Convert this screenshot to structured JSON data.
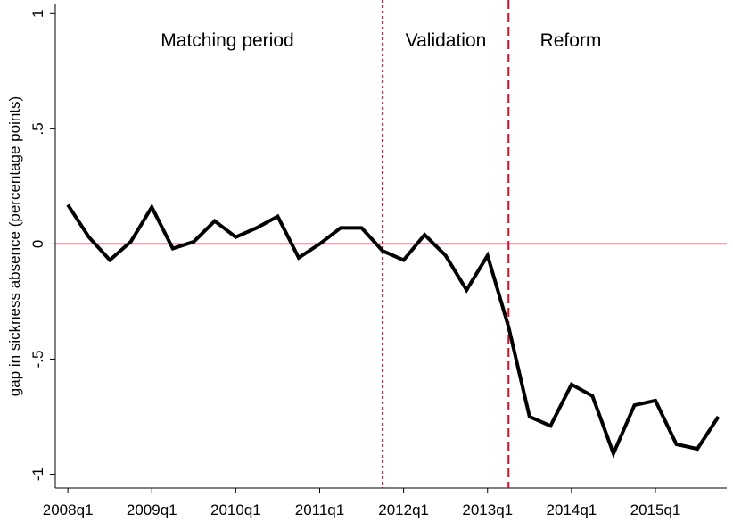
{
  "chart_data": {
    "type": "line",
    "ylabel": "gap in sickness absence (percentage points)",
    "annotations": [
      "Matching period",
      "Validation",
      "Reform"
    ],
    "x": [
      2008,
      2008.25,
      2008.5,
      2008.75,
      2009,
      2009.25,
      2009.5,
      2009.75,
      2010,
      2010.25,
      2010.5,
      2010.75,
      2011,
      2011.25,
      2011.5,
      2011.75,
      2012,
      2012.25,
      2012.5,
      2012.75,
      2013,
      2013.25,
      2013.5,
      2013.75,
      2014,
      2014.25,
      2014.5,
      2014.75,
      2015,
      2015.25,
      2015.5,
      2015.75
    ],
    "series": [
      {
        "color": "#000000",
        "values": [
          0.17,
          0.03,
          -0.07,
          0.01,
          0.16,
          -0.02,
          0.01,
          0.1,
          0.03,
          0.07,
          0.12,
          -0.06,
          0.0,
          0.07,
          0.07,
          -0.03,
          -0.07,
          0.04,
          -0.05,
          -0.2,
          -0.05,
          -0.36,
          -0.75,
          -0.79,
          -0.61,
          -0.66,
          -0.91,
          -0.7,
          -0.68,
          -0.87,
          -0.89,
          -0.75
        ]
      }
    ],
    "xlim": [
      2007.85,
      2015.85
    ],
    "xticks": [
      {
        "value": 2008,
        "label": "2008q1"
      },
      {
        "value": 2009,
        "label": "2009q1"
      },
      {
        "value": 2010,
        "label": "2010q1"
      },
      {
        "value": 2011,
        "label": "2011q1"
      },
      {
        "value": 2012,
        "label": "2012q1"
      },
      {
        "value": 2013,
        "label": "2013q1"
      },
      {
        "value": 2014,
        "label": "2014q1"
      },
      {
        "value": 2015,
        "label": "2015q1"
      }
    ],
    "ylim": [
      -1.06,
      1.04
    ],
    "yticks": [
      {
        "value": -1,
        "label": "-1"
      },
      {
        "value": -0.5,
        "label": "-.5"
      },
      0,
      {
        "value": 0.5,
        "label": ".5"
      },
      1
    ],
    "hline": 0,
    "vlines": [
      {
        "x": 2011.75,
        "style": "dotted"
      },
      {
        "x": 2013.25,
        "style": "dashed"
      }
    ],
    "ref_color": "#c8102e"
  }
}
